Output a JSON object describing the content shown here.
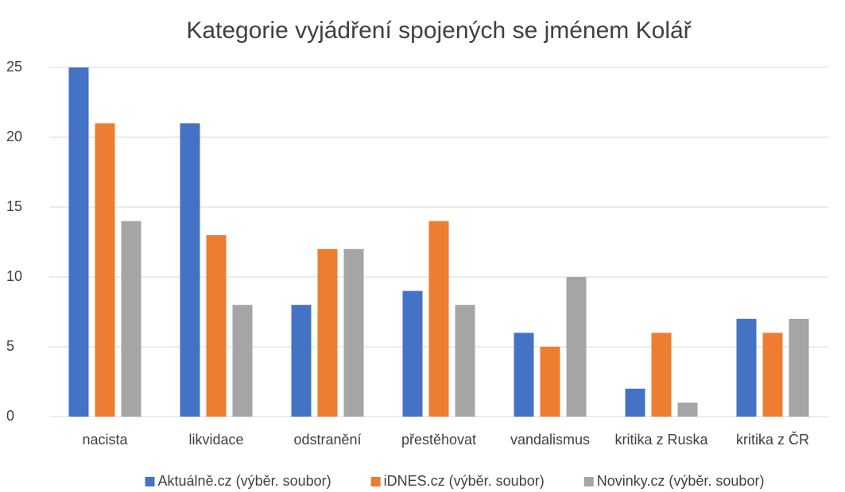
{
  "chart_data": {
    "type": "bar",
    "title": "Kategorie vyjádření spojených se jménem Kolář",
    "categories": [
      "nacista",
      "likvidace",
      "odstranění",
      "přestěhovat",
      "vandalismus",
      "kritika z Ruska",
      "kritika z ČR"
    ],
    "series": [
      {
        "name": "Aktuálně.cz (výběr. soubor)",
        "color": "#4472c4",
        "values": [
          25,
          21,
          8,
          9,
          6,
          2,
          7
        ]
      },
      {
        "name": "iDNES.cz (výběr. soubor)",
        "color": "#ed7d31",
        "values": [
          21,
          13,
          12,
          14,
          5,
          6,
          6
        ]
      },
      {
        "name": "Novinky.cz (výběr. soubor)",
        "color": "#a5a5a5",
        "values": [
          14,
          8,
          12,
          8,
          10,
          1,
          7
        ]
      }
    ],
    "ylim": [
      0,
      25
    ],
    "yticks": [
      0,
      5,
      10,
      15,
      20,
      25
    ],
    "grid": true,
    "legend": "bottom"
  }
}
